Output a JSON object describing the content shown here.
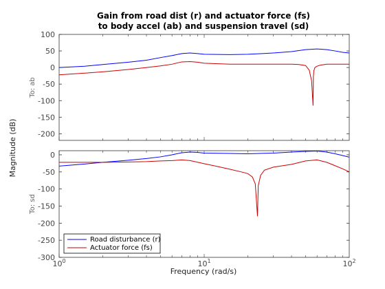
{
  "chart_data": {
    "type": "line",
    "title_line1": "Gain from road dist (r) and actuator force (fs)",
    "title_line2": "to body accel (ab) and suspension travel (sd)",
    "xlabel": "Frequency  (rad/s)",
    "ylabel": "Magnitude (dB)",
    "x_scale": "log",
    "xlim": [
      1,
      100
    ],
    "x_ticks": [
      {
        "value": 1,
        "base": "10",
        "exp": "0"
      },
      {
        "value": 10,
        "base": "10",
        "exp": "1"
      },
      {
        "value": 100,
        "base": "10",
        "exp": "2"
      }
    ],
    "grid": false,
    "legend": {
      "placement": "bottom-left",
      "entries": [
        {
          "name": "Road disturbance (r)",
          "color": "#0000ff"
        },
        {
          "name": "Actuator force (fs)",
          "color": "#cc0000"
        }
      ]
    },
    "panels": [
      {
        "output_label": "To: ab",
        "ylim": [
          -220,
          100
        ],
        "y_ticks": [
          100,
          50,
          0,
          -50,
          -100,
          -150,
          -200
        ],
        "series": [
          {
            "name": "Road disturbance (r)",
            "color": "#0000ff",
            "points": [
              [
                1,
                0
              ],
              [
                1.5,
                4
              ],
              [
                2,
                9
              ],
              [
                3,
                16
              ],
              [
                4,
                22
              ],
              [
                5,
                30
              ],
              [
                6,
                36
              ],
              [
                7,
                42
              ],
              [
                8,
                44
              ],
              [
                9,
                42
              ],
              [
                10,
                40
              ],
              [
                15,
                39
              ],
              [
                20,
                40
              ],
              [
                25,
                42
              ],
              [
                30,
                44
              ],
              [
                40,
                48
              ],
              [
                50,
                54
              ],
              [
                60,
                56
              ],
              [
                70,
                54
              ],
              [
                80,
                50
              ],
              [
                90,
                46
              ],
              [
                100,
                44
              ]
            ]
          },
          {
            "name": "Actuator force (fs)",
            "color": "#cc0000",
            "points": [
              [
                1,
                -22
              ],
              [
                1.5,
                -17
              ],
              [
                2,
                -13
              ],
              [
                3,
                -6
              ],
              [
                4,
                0
              ],
              [
                5,
                5
              ],
              [
                6,
                10
              ],
              [
                7,
                17
              ],
              [
                8,
                18
              ],
              [
                9,
                16
              ],
              [
                10,
                13
              ],
              [
                15,
                10
              ],
              [
                20,
                10
              ],
              [
                30,
                10
              ],
              [
                40,
                10
              ],
              [
                45,
                9
              ],
              [
                50,
                6
              ],
              [
                53,
                -8
              ],
              [
                55,
                -40
              ],
              [
                56.3,
                -115
              ],
              [
                56.6,
                -28
              ],
              [
                57,
                -10
              ],
              [
                58,
                0
              ],
              [
                60,
                4
              ],
              [
                63,
                7
              ],
              [
                70,
                10
              ],
              [
                80,
                10
              ],
              [
                100,
                10
              ]
            ]
          }
        ]
      },
      {
        "output_label": "To: sd",
        "ylim": [
          -300,
          12
        ],
        "y_ticks": [
          0,
          -50,
          -100,
          -150,
          -200,
          -250,
          -300
        ],
        "series": [
          {
            "name": "Road disturbance (r)",
            "color": "#0000ff",
            "points": [
              [
                1,
                -33
              ],
              [
                1.5,
                -27
              ],
              [
                2,
                -22
              ],
              [
                3,
                -16
              ],
              [
                4,
                -11
              ],
              [
                5,
                -6
              ],
              [
                6,
                0
              ],
              [
                7,
                6
              ],
              [
                8,
                8
              ],
              [
                9,
                7
              ],
              [
                10,
                5
              ],
              [
                15,
                4
              ],
              [
                20,
                3
              ],
              [
                30,
                5
              ],
              [
                40,
                8
              ],
              [
                50,
                10
              ],
              [
                60,
                11
              ],
              [
                70,
                8
              ],
              [
                80,
                3
              ],
              [
                90,
                -2
              ],
              [
                100,
                -7
              ]
            ]
          },
          {
            "name": "Actuator force (fs)",
            "color": "#cc0000",
            "points": [
              [
                1,
                -22
              ],
              [
                2,
                -22
              ],
              [
                3,
                -21
              ],
              [
                4,
                -20
              ],
              [
                5,
                -18
              ],
              [
                6,
                -17
              ],
              [
                7,
                -15
              ],
              [
                8,
                -17
              ],
              [
                10,
                -26
              ],
              [
                12,
                -33
              ],
              [
                15,
                -42
              ],
              [
                18,
                -50
              ],
              [
                20,
                -55
              ],
              [
                21.5,
                -65
              ],
              [
                22.5,
                -85
              ],
              [
                23.3,
                -180
              ],
              [
                23.6,
                -90
              ],
              [
                24.5,
                -60
              ],
              [
                26,
                -45
              ],
              [
                30,
                -36
              ],
              [
                40,
                -28
              ],
              [
                50,
                -18
              ],
              [
                60,
                -15
              ],
              [
                70,
                -22
              ],
              [
                80,
                -32
              ],
              [
                90,
                -41
              ],
              [
                100,
                -50
              ]
            ]
          }
        ]
      }
    ]
  }
}
